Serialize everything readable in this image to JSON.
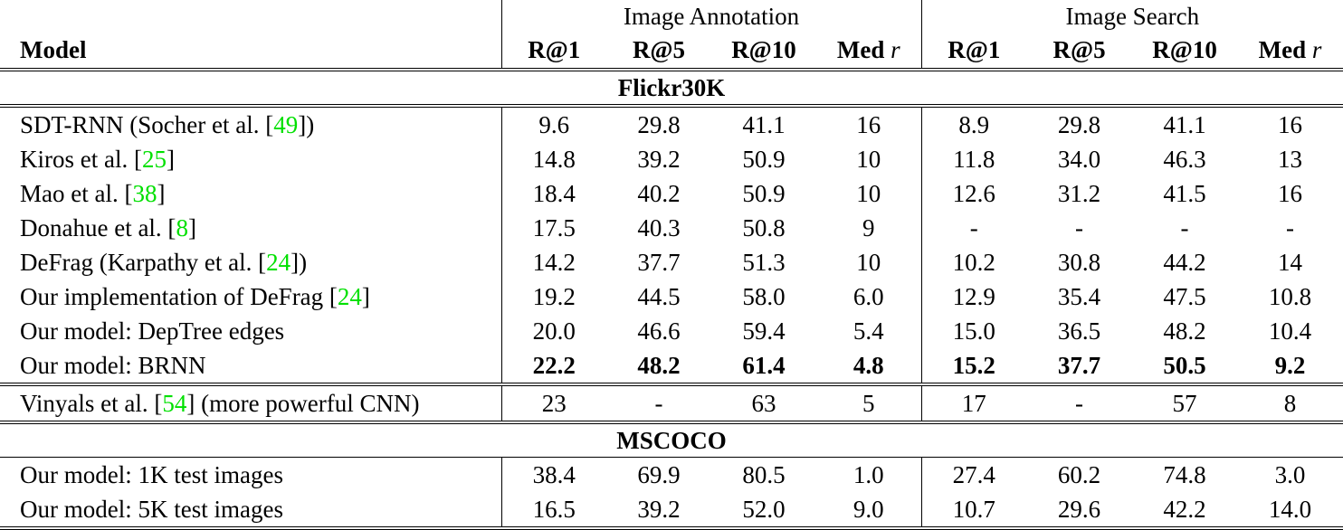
{
  "header": {
    "model_label": "Model",
    "groups": [
      "Image Annotation",
      "Image Search"
    ],
    "metrics": [
      "R@1",
      "R@5",
      "R@10",
      "Med",
      "R@1",
      "R@5",
      "R@10",
      "Med"
    ],
    "med_suffix": "r"
  },
  "colors": {
    "reference": "#00e000"
  },
  "sections": [
    {
      "title": "Flickr30K",
      "rows": [
        {
          "pre": "SDT-RNN (Socher et al. [",
          "ref": "49",
          "post": "])",
          "values": [
            "9.6",
            "29.8",
            "41.1",
            "16",
            "8.9",
            "29.8",
            "41.1",
            "16"
          ]
        },
        {
          "pre": "Kiros et al. [",
          "ref": "25",
          "post": "]",
          "values": [
            "14.8",
            "39.2",
            "50.9",
            "10",
            "11.8",
            "34.0",
            "46.3",
            "13"
          ]
        },
        {
          "pre": "Mao et al. [",
          "ref": "38",
          "post": "]",
          "values": [
            "18.4",
            "40.2",
            "50.9",
            "10",
            "12.6",
            "31.2",
            "41.5",
            "16"
          ]
        },
        {
          "pre": "Donahue et al. [",
          "ref": "8",
          "post": "]",
          "values": [
            "17.5",
            "40.3",
            "50.8",
            "9",
            "-",
            "-",
            "-",
            "-"
          ]
        },
        {
          "pre": "DeFrag (Karpathy et al. [",
          "ref": "24",
          "post": "])",
          "values": [
            "14.2",
            "37.7",
            "51.3",
            "10",
            "10.2",
            "30.8",
            "44.2",
            "14"
          ]
        },
        {
          "pre": "Our implementation of DeFrag [",
          "ref": "24",
          "post": "]",
          "values": [
            "19.2",
            "44.5",
            "58.0",
            "6.0",
            "12.9",
            "35.4",
            "47.5",
            "10.8"
          ]
        },
        {
          "pre": "Our model: DepTree edges",
          "ref": "",
          "post": "",
          "values": [
            "20.0",
            "46.6",
            "59.4",
            "5.4",
            "15.0",
            "36.5",
            "48.2",
            "10.4"
          ]
        },
        {
          "pre": "Our model: BRNN",
          "ref": "",
          "post": "",
          "bold": true,
          "values": [
            "22.2",
            "48.2",
            "61.4",
            "4.8",
            "15.2",
            "37.7",
            "50.5",
            "9.2"
          ]
        }
      ],
      "extra": {
        "pre": "Vinyals et al. [",
        "ref": "54",
        "post": "] (more powerful CNN)",
        "values": [
          "23",
          "-",
          "63",
          "5",
          "17",
          "-",
          "57",
          "8"
        ]
      }
    },
    {
      "title": "MSCOCO",
      "rows": [
        {
          "pre": "Our model: 1K test images",
          "ref": "",
          "post": "",
          "values": [
            "38.4",
            "69.9",
            "80.5",
            "1.0",
            "27.4",
            "60.2",
            "74.8",
            "3.0"
          ]
        },
        {
          "pre": "Our model: 5K test images",
          "ref": "",
          "post": "",
          "values": [
            "16.5",
            "39.2",
            "52.0",
            "9.0",
            "10.7",
            "29.6",
            "42.2",
            "14.0"
          ]
        }
      ]
    }
  ]
}
